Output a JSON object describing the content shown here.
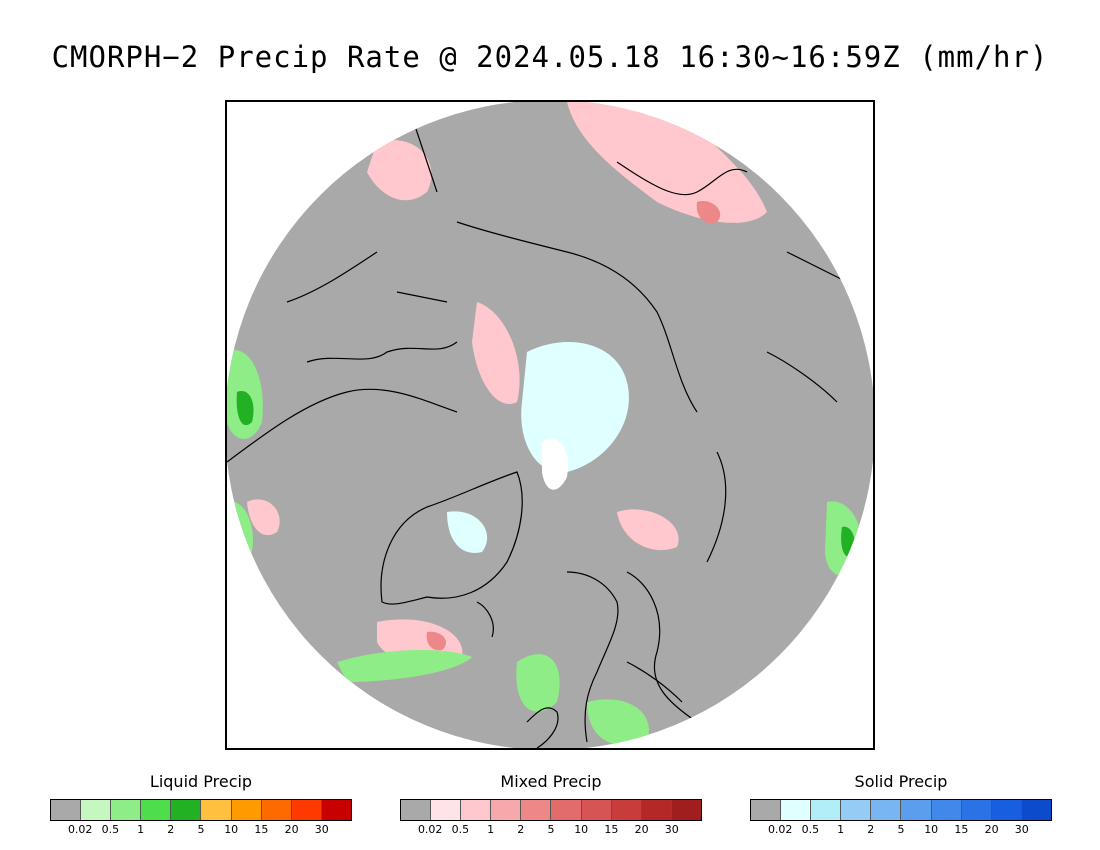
{
  "title": "CMORPH−2 Precip Rate @ 2024.05.18 16:30~16:59Z (mm/hr)",
  "map": {
    "projection": "north-polar-stereographic",
    "no_data_color": "#a9a9a9",
    "background_color": "#ffffff",
    "coastline_color": "#000000"
  },
  "legends": [
    {
      "title": "Liquid Precip",
      "colors": [
        "#a9a9a9",
        "#c6f7c0",
        "#8eed86",
        "#4ede4a",
        "#22b122",
        "#ffc040",
        "#ff9a00",
        "#ff6a00",
        "#ff3a00",
        "#c80000"
      ],
      "ticks": [
        "0.02",
        "0.5",
        "1",
        "2",
        "5",
        "10",
        "15",
        "20",
        "30"
      ]
    },
    {
      "title": "Mixed Precip",
      "colors": [
        "#a9a9a9",
        "#ffe3e8",
        "#ffc8ce",
        "#f6a8aa",
        "#ee8888",
        "#e26c6c",
        "#d65454",
        "#c83c3c",
        "#b42828",
        "#a01e1e"
      ],
      "ticks": [
        "0.02",
        "0.5",
        "1",
        "2",
        "5",
        "10",
        "15",
        "20",
        "30"
      ]
    },
    {
      "title": "Solid Precip",
      "colors": [
        "#a9a9a9",
        "#e0ffff",
        "#b0eef8",
        "#94ccf6",
        "#78b6f2",
        "#5c9eee",
        "#4288ea",
        "#2a72e6",
        "#185ee0",
        "#0c4ccc"
      ],
      "ticks": [
        "0.02",
        "0.5",
        "1",
        "2",
        "5",
        "10",
        "15",
        "20",
        "30"
      ]
    }
  ]
}
